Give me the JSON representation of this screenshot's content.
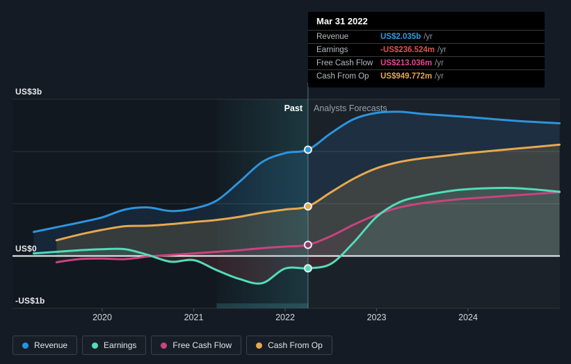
{
  "tooltip": {
    "title": "Mar 31 2022",
    "suffix": "/yr",
    "rows": [
      {
        "label": "Revenue",
        "value": "US$2.035b",
        "color": "#2f9de3"
      },
      {
        "label": "Earnings",
        "value": "-US$236.524m",
        "color": "#e4504d"
      },
      {
        "label": "Free Cash Flow",
        "value": "US$213.036m",
        "color": "#e0488f"
      },
      {
        "label": "Cash From Op",
        "value": "US$949.772m",
        "color": "#e9a750"
      }
    ]
  },
  "annotations": {
    "past_label": "Past",
    "forecast_label": "Analysts Forecasts"
  },
  "legend": {
    "items": [
      {
        "label": "Revenue",
        "color": "#2396e0"
      },
      {
        "label": "Earnings",
        "color": "#52dcba"
      },
      {
        "label": "Free Cash Flow",
        "color": "#c9437f"
      },
      {
        "label": "Cash From Op",
        "color": "#e8a84e"
      }
    ]
  },
  "colors": {
    "background": "#151b24",
    "chart_background": "#12181f",
    "forecast_overlay": "rgba(200,215,232,0.05)",
    "highlight_band": "rgba(70,180,190,0.20)",
    "divider_line": "rgba(125,195,205,0.55)",
    "zero_line": "#f0f3f5",
    "gridline": "rgba(255,255,255,0.12)",
    "negative_earnings_fill": "#d9534f"
  },
  "chart_data": {
    "type": "area",
    "title": "Past and forecast financials (hover: Mar 31 2022)",
    "unit": "US$ billions per year",
    "x_axis": {
      "range": [
        2019.02,
        2025.0
      ],
      "ticks": [
        2020,
        2021,
        2022,
        2023,
        2024
      ],
      "tick_labels": [
        "2020",
        "2021",
        "2022",
        "2023",
        "2024"
      ]
    },
    "y_axis": {
      "range": [
        -1,
        3
      ],
      "ticks": [
        3,
        0,
        -1
      ],
      "tick_labels": [
        "US$3b",
        "US$0",
        "-US$1b"
      ],
      "gridlines": [
        3,
        2,
        1,
        0,
        -1
      ]
    },
    "divider_x": 2022.25,
    "highlight_band": [
      2021.25,
      2022.25
    ],
    "legend_position": "bottom",
    "series": [
      {
        "name": "Revenue",
        "color": "#2d94dd",
        "fill_opacity": 0.13,
        "x": [
          2019.25,
          2019.5,
          2019.75,
          2020,
          2020.25,
          2020.5,
          2020.75,
          2021,
          2021.25,
          2021.5,
          2021.75,
          2022,
          2022.25,
          2022.5,
          2022.75,
          2023,
          2023.25,
          2023.5,
          2023.75,
          2024,
          2024.5,
          2025
        ],
        "values": [
          0.46,
          0.55,
          0.64,
          0.74,
          0.89,
          0.93,
          0.86,
          0.91,
          1.06,
          1.42,
          1.8,
          1.97,
          2.035,
          2.35,
          2.62,
          2.74,
          2.76,
          2.72,
          2.69,
          2.66,
          2.59,
          2.54
        ],
        "marker_x": 2022.25,
        "marker_value": 2.035
      },
      {
        "name": "Cash From Op",
        "color": "#e8a84e",
        "fill_opacity": 0.16,
        "x": [
          2019.5,
          2019.75,
          2020,
          2020.25,
          2020.5,
          2020.75,
          2021,
          2021.25,
          2021.5,
          2021.75,
          2022,
          2022.25,
          2022.5,
          2022.75,
          2023,
          2023.25,
          2023.5,
          2023.75,
          2024,
          2024.5,
          2025
        ],
        "values": [
          0.3,
          0.41,
          0.5,
          0.57,
          0.58,
          0.61,
          0.65,
          0.69,
          0.75,
          0.83,
          0.89,
          0.9498,
          1.22,
          1.48,
          1.68,
          1.8,
          1.87,
          1.92,
          1.97,
          2.05,
          2.13
        ],
        "marker_x": 2022.25,
        "marker_value": 0.9498
      },
      {
        "name": "Free Cash Flow",
        "color": "#c9437f",
        "fill_opacity": 0.07,
        "marker_fill": "#93386f",
        "x": [
          2019.5,
          2019.75,
          2020,
          2020.25,
          2020.5,
          2020.75,
          2021,
          2021.25,
          2021.5,
          2021.75,
          2022,
          2022.25,
          2022.5,
          2022.75,
          2023,
          2023.25,
          2023.5,
          2023.75,
          2024,
          2024.5,
          2025
        ],
        "values": [
          -0.12,
          -0.06,
          -0.05,
          -0.06,
          -0.01,
          0.02,
          0.05,
          0.08,
          0.11,
          0.15,
          0.18,
          0.213,
          0.38,
          0.6,
          0.79,
          0.93,
          1.01,
          1.06,
          1.1,
          1.16,
          1.22
        ],
        "marker_x": 2022.25,
        "marker_value": 0.213
      },
      {
        "name": "Earnings",
        "color": "#52dcba",
        "fill_opacity": 0.12,
        "negative_fill": true,
        "x": [
          2019.25,
          2019.5,
          2019.75,
          2020,
          2020.25,
          2020.5,
          2020.75,
          2021,
          2021.25,
          2021.5,
          2021.75,
          2022,
          2022.25,
          2022.5,
          2022.75,
          2023,
          2023.25,
          2023.5,
          2023.75,
          2024,
          2024.5,
          2025
        ],
        "values": [
          0.05,
          0.08,
          0.11,
          0.13,
          0.13,
          0.02,
          -0.11,
          -0.08,
          -0.27,
          -0.44,
          -0.52,
          -0.24,
          -0.2365,
          -0.15,
          0.26,
          0.75,
          1.03,
          1.15,
          1.23,
          1.28,
          1.3,
          1.23
        ],
        "marker_x": 2022.25,
        "marker_value": -0.2365
      }
    ]
  }
}
